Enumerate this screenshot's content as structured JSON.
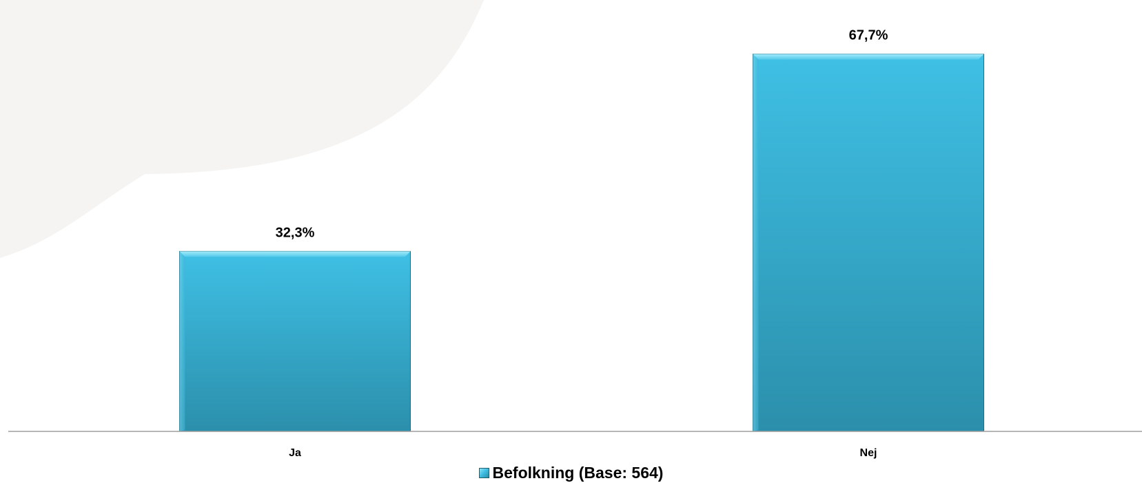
{
  "chart_data": {
    "type": "bar",
    "categories": [
      "Ja",
      "Nej"
    ],
    "series": [
      {
        "name": "Befolkning (Base: 564)",
        "values": [
          32.3,
          67.7
        ],
        "color": "#3bbde3"
      }
    ],
    "data_labels": [
      "32,3%",
      "67,7%"
    ],
    "ylim": [
      0,
      70
    ],
    "grid": false,
    "legend_position": "bottom"
  }
}
